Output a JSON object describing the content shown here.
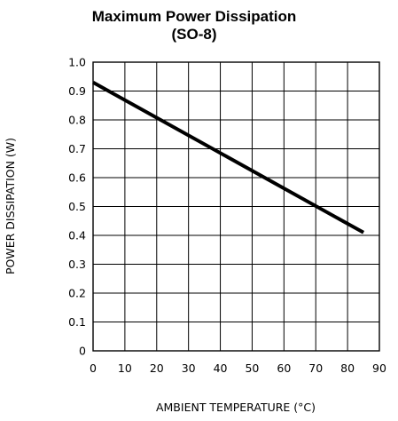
{
  "chart_data": {
    "type": "line",
    "title": "Maximum Power Dissipation",
    "subtitle": "(SO-8)",
    "xlabel": "AMBIENT TEMPERATURE (°C)",
    "ylabel": "POWER DISSIPATION (W)",
    "xlim": [
      0,
      90
    ],
    "ylim": [
      0,
      1.0
    ],
    "x_ticks": [
      0,
      10,
      20,
      30,
      40,
      50,
      60,
      70,
      80,
      90
    ],
    "x_tick_labels": [
      "0",
      "10",
      "20",
      "30",
      "40",
      "50",
      "60",
      "70",
      "80",
      "90"
    ],
    "y_ticks": [
      0,
      0.1,
      0.2,
      0.3,
      0.4,
      0.5,
      0.6,
      0.7,
      0.8,
      0.9,
      1.0
    ],
    "y_tick_labels": [
      "0",
      "0.1",
      "0.2",
      "0.3",
      "0.4",
      "0.5",
      "0.6",
      "0.7",
      "0.8",
      "0.9",
      "1.0"
    ],
    "grid": true,
    "legend": "none",
    "series": [
      {
        "x": [
          0,
          85
        ],
        "y": [
          0.93,
          0.41
        ]
      }
    ],
    "colors": {
      "line": "#000000",
      "grid": "#000000",
      "background": "#ffffff"
    }
  }
}
